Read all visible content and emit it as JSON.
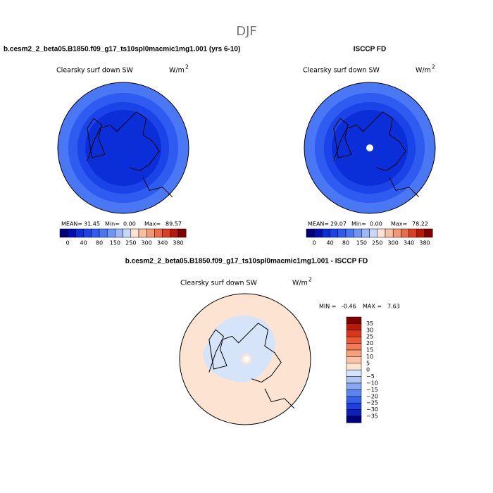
{
  "title": "DJF",
  "panels": [
    {
      "title": "b.cesm2_2_beta05.B1850.f09_g17_ts10spl0macmic1mg1.001 (yrs 6-10)",
      "field": "Clearsky surf down SW",
      "units": "W/m",
      "units_power": "2",
      "mean_label": "MEAN=",
      "mean": "31.45",
      "min_label": "Min=",
      "min": "0.00",
      "max_label": "Max=",
      "max": "89.57"
    },
    {
      "title": "ISCCP FD",
      "field": "Clearsky surf down SW",
      "units": "W/m",
      "units_power": "2",
      "mean_label": "MEAN=",
      "mean": "29.07",
      "min_label": "Min=",
      "min": "0.00",
      "max_label": "Max=",
      "max": "78.22"
    }
  ],
  "colorbar": {
    "colors": [
      "#00007f",
      "#0010b0",
      "#0a2ed8",
      "#1a44e8",
      "#2e5cf0",
      "#4a78f4",
      "#6e96f6",
      "#9cb8f8",
      "#c8d8fb",
      "#fde4d2",
      "#f9bfa0",
      "#f49874",
      "#ec6c48",
      "#dc4020",
      "#b81a08",
      "#800000"
    ],
    "labels": [
      "0",
      "40",
      "80",
      "150",
      "250",
      "300",
      "340",
      "380"
    ]
  },
  "difference": {
    "title": "b.cesm2_2_beta05.B1850.f09_g17_ts10spl0macmic1mg1.001 - ISCCP FD",
    "field": "Clearsky surf down SW",
    "units": "W/m",
    "units_power": "2",
    "min_label": "MIN =",
    "min": "-0.46",
    "max_label": "MAX =",
    "max": "7.63",
    "colorbar": {
      "colors": [
        "#800000",
        "#b81a08",
        "#dc3418",
        "#ec5a34",
        "#f47c54",
        "#f8a07c",
        "#fbc4a6",
        "#fde4d2",
        "#d6e4fa",
        "#b0c8f6",
        "#86a8f2",
        "#5a84ee",
        "#3460ea",
        "#1a3ee0",
        "#0a20b8",
        "#000080"
      ],
      "labels": [
        "35",
        "30",
        "25",
        "20",
        "15",
        "10",
        "5",
        "0",
        "−5",
        "−10",
        "−15",
        "−20",
        "−25",
        "−30",
        "−35"
      ]
    }
  }
}
